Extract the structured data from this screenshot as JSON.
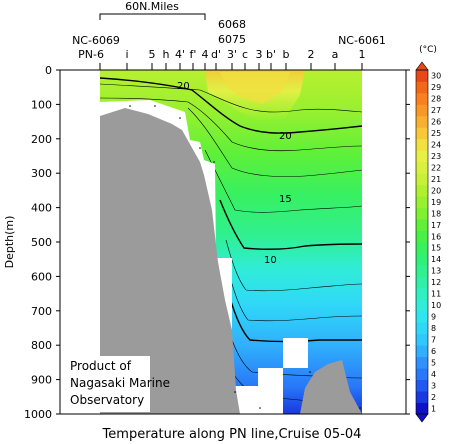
{
  "chart_data": {
    "type": "heatmap",
    "title": "Temperature along PN line,Cruise 05-04",
    "ylabel": "Depth(m)",
    "ylim": [
      0,
      1000
    ],
    "y_ticks": [
      0,
      100,
      200,
      300,
      400,
      500,
      600,
      700,
      800,
      900,
      1000
    ],
    "scale_bar_label": "60N.Miles",
    "stations": [
      "PN-6",
      "i",
      "5",
      "h",
      "4'",
      "f'",
      "4",
      "d'",
      "3'",
      "c",
      "3",
      "b'",
      "b",
      "2",
      "a",
      "1"
    ],
    "ship_stations": [
      "NC-6069",
      "6068",
      "6075",
      "NC-6061"
    ],
    "colorbar": {
      "unit": "(°C)",
      "min": 1,
      "max": 30,
      "ticks": [
        1,
        2,
        3,
        4,
        5,
        6,
        7,
        8,
        9,
        10,
        11,
        12,
        13,
        14,
        15,
        16,
        17,
        18,
        19,
        20,
        21,
        22,
        23,
        24,
        25,
        26,
        27,
        28,
        29,
        30
      ],
      "colors": [
        "#1010c8",
        "#1838e0",
        "#2058f0",
        "#2878f8",
        "#3090fc",
        "#30b0fc",
        "#30c8fc",
        "#30d8f8",
        "#30e4f0",
        "#30ecd8",
        "#30f0c0",
        "#30f0a8",
        "#30f090",
        "#30f078",
        "#38f060",
        "#48f048",
        "#60f038",
        "#80f030",
        "#98f030",
        "#b0f030",
        "#c8f038",
        "#d8f040",
        "#e8f048",
        "#f0e040",
        "#f8c838",
        "#f8b030",
        "#f89828",
        "#f88020",
        "#f06818",
        "#e84818"
      ]
    },
    "contour_labels": [
      "20",
      "20",
      "15",
      "10"
    ],
    "annotation_lines": [
      "Product of",
      "Nagasaki Marine",
      "Observatory"
    ]
  }
}
